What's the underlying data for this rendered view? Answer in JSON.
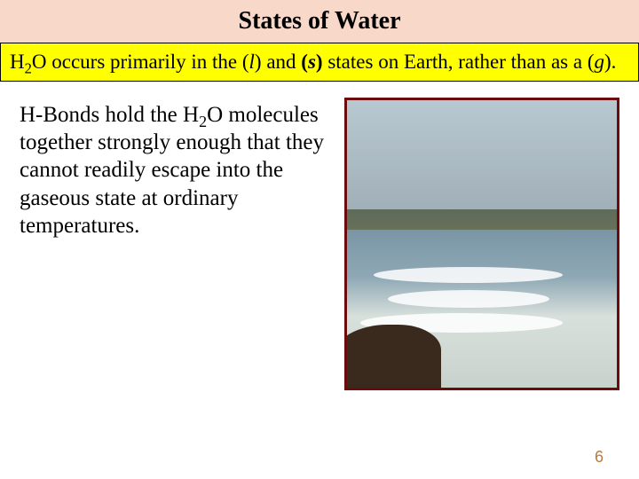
{
  "title": "States of Water",
  "statement": {
    "pre": "H",
    "sub1": "2",
    "mid1": "O occurs primarily in the (",
    "l": "l",
    "mid2": ") and ",
    "s_open": "(",
    "s": "s",
    "s_close": ")",
    "mid3": " states on Earth, rather than as a (",
    "g": "g",
    "end": ")."
  },
  "body": {
    "pre": "H-Bonds hold the H",
    "sub": "2",
    "rest": "O molecules together strongly enough that they cannot readily escape into the gaseous state at ordinary temperatures."
  },
  "page_number": "6",
  "colors": {
    "title_bg": "#f8d8c8",
    "highlight_bg": "#ffff00",
    "image_border": "#6a0c0c",
    "page_num_color": "#b87840"
  }
}
